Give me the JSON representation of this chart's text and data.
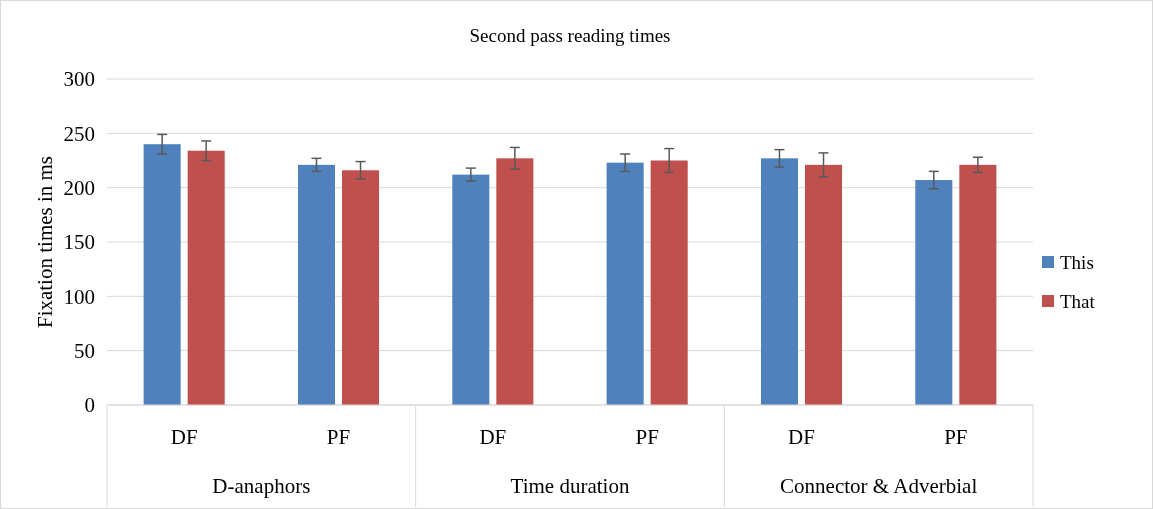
{
  "chart_data": {
    "type": "bar",
    "title": "Second pass reading times",
    "ylabel": "Fixation times in ms",
    "categories": [
      "DF",
      "PF",
      "DF",
      "PF",
      "DF",
      "PF"
    ],
    "series": [
      {
        "name": "This",
        "color": "#4f81bd",
        "values": [
          240,
          221,
          212,
          223,
          227,
          207
        ],
        "errors": [
          9,
          6,
          6,
          8,
          8,
          8
        ]
      },
      {
        "name": "That",
        "color": "#c0504d",
        "values": [
          234,
          216,
          227,
          225,
          221,
          221
        ],
        "errors": [
          9,
          8,
          10,
          11,
          11,
          7
        ]
      }
    ],
    "annotations": [
      "D-anaphors",
      "Time duration",
      "Connector & Adverbial"
    ],
    "ylim": [
      0,
      300
    ],
    "yticks": [
      0,
      50,
      100,
      150,
      200,
      250,
      300
    ],
    "grid": "y",
    "legend": "right"
  }
}
